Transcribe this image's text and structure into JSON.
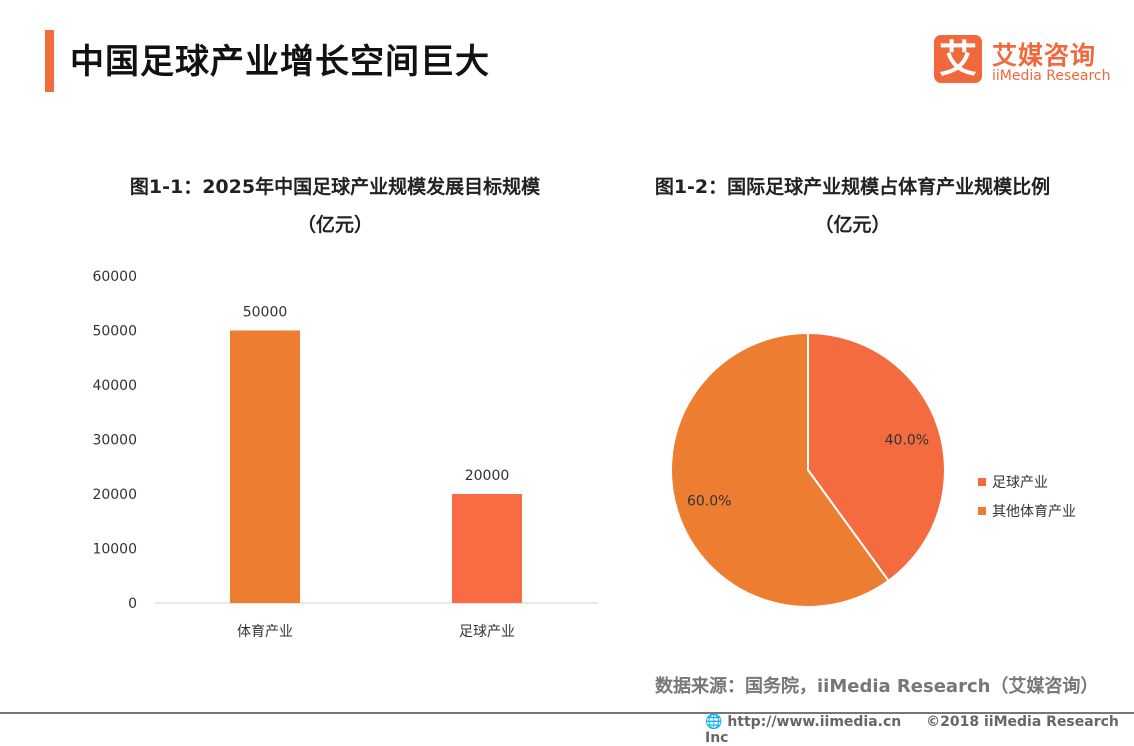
{
  "header": {
    "title": "中国足球产业增长空间巨大",
    "logo_char": "艾",
    "logo_cn": "艾媒咨询",
    "logo_en": "iiMedia Research"
  },
  "colors": {
    "accent": "#F26B3A",
    "bar_sports": "#ED7D31",
    "bar_football": "#F96B43",
    "pie_football": "#F46B40",
    "pie_other": "#ED7D31"
  },
  "chart_data": [
    {
      "type": "bar",
      "title": "图1-1：2025年中国足球产业规模发展目标规模",
      "subtitle": "（亿元）",
      "categories": [
        "体育产业",
        "足球产业"
      ],
      "values": [
        50000,
        20000
      ],
      "data_labels": [
        "50000",
        "20000"
      ],
      "ylim": [
        0,
        60000
      ],
      "yticks": [
        "0",
        "10000",
        "20000",
        "30000",
        "40000",
        "50000",
        "60000"
      ],
      "grid": false
    },
    {
      "type": "pie",
      "title": "图1-2：国际足球产业规模占体育产业规模比例",
      "subtitle": "（亿元）",
      "labels": [
        "足球产业",
        "其他体育产业"
      ],
      "values": [
        40,
        60
      ],
      "data_labels": [
        "40.0%",
        "60.0%"
      ],
      "legend": "right"
    }
  ],
  "footer": {
    "source": "数据来源：国务院，iiMedia Research（艾媒咨询）",
    "url": "http://www.iimedia.cn",
    "copyright": "©2018  iiMedia Research  Inc"
  }
}
